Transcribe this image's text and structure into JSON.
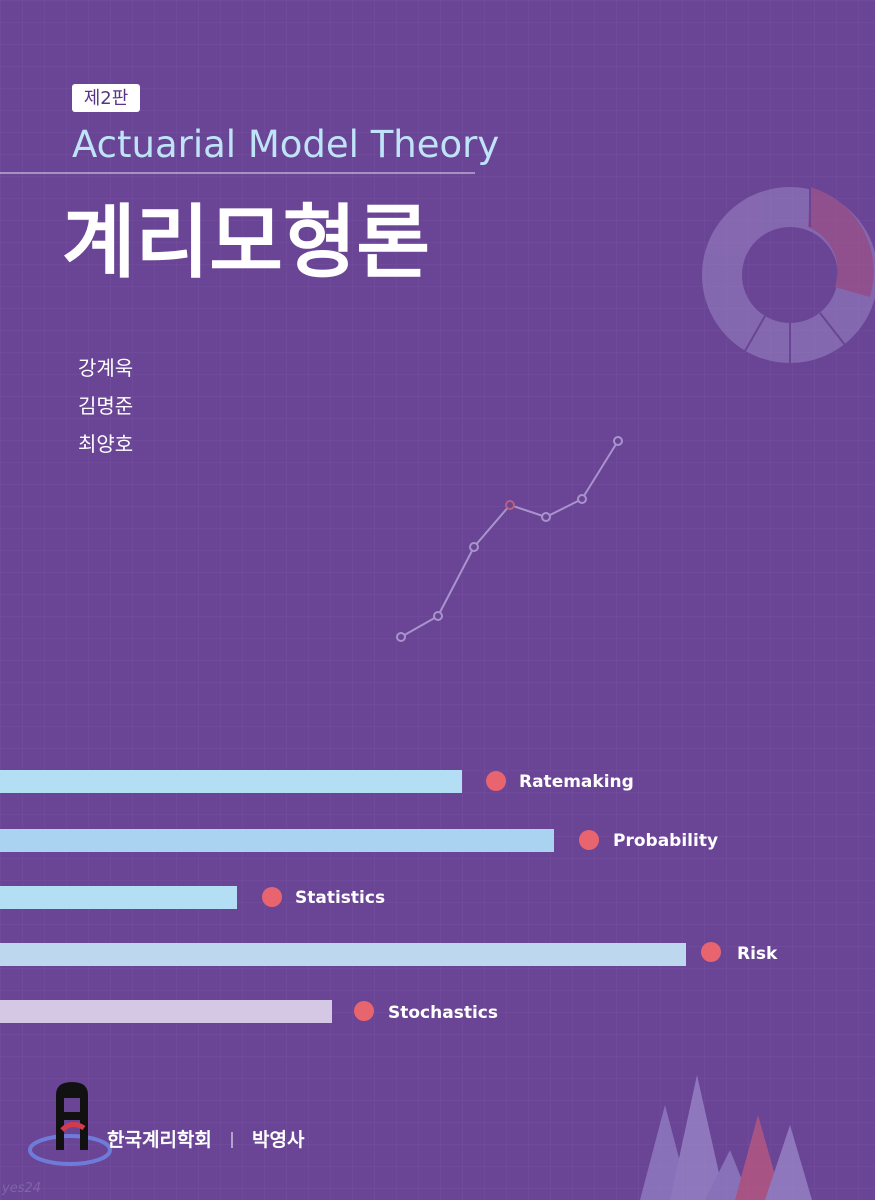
{
  "edition": "제2판",
  "subtitle": "Actuarial Model Theory",
  "title": "계리모형론",
  "authors": [
    "강계욱",
    "김명준",
    "최양호"
  ],
  "topics": [
    "Ratemaking",
    "Probability",
    "Statistics",
    "Risk",
    "Stochastics"
  ],
  "publishers": [
    "한국계리학회",
    "박영사"
  ],
  "watermark": "yes24"
}
